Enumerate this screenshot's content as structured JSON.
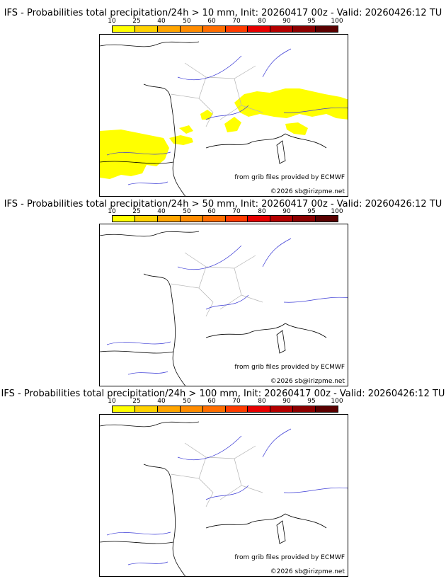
{
  "legend_ticks": [
    "10",
    "25",
    "40",
    "50",
    "60",
    "70",
    "80",
    "90",
    "95",
    "100"
  ],
  "legend_colors": [
    "#ffff00",
    "#ffd200",
    "#ffa500",
    "#ff8c00",
    "#ff6e00",
    "#ff3c00",
    "#e60000",
    "#b40000",
    "#8c0000",
    "#5a0000"
  ],
  "panels": [
    {
      "title": "IFS - Probabilities total precipitation/24h > 10 mm, Init: 20260417 00z - Valid: 20260426:12 TU",
      "credit": "from grib files provided by ECMWF",
      "copyright": "©2026 sb@irizpme.net"
    },
    {
      "title": "IFS - Probabilities total precipitation/24h > 50 mm, Init: 20260417 00z - Valid: 20260426:12 TU",
      "credit": "from grib files provided by ECMWF",
      "copyright": "©2026 sb@irizpme.net"
    },
    {
      "title": "IFS - Probabilities total precipitation/24h > 100 mm, Init: 20260417 00z - Valid: 20260426:12 TU",
      "credit": "from grib files provided by ECMWF",
      "copyright": "©2026 sb@irizpme.net"
    }
  ],
  "colors": {
    "coast": "#000000",
    "rivers": "#3b3bd6",
    "borders": "#b4b4b4",
    "precip": "#ffff00"
  }
}
